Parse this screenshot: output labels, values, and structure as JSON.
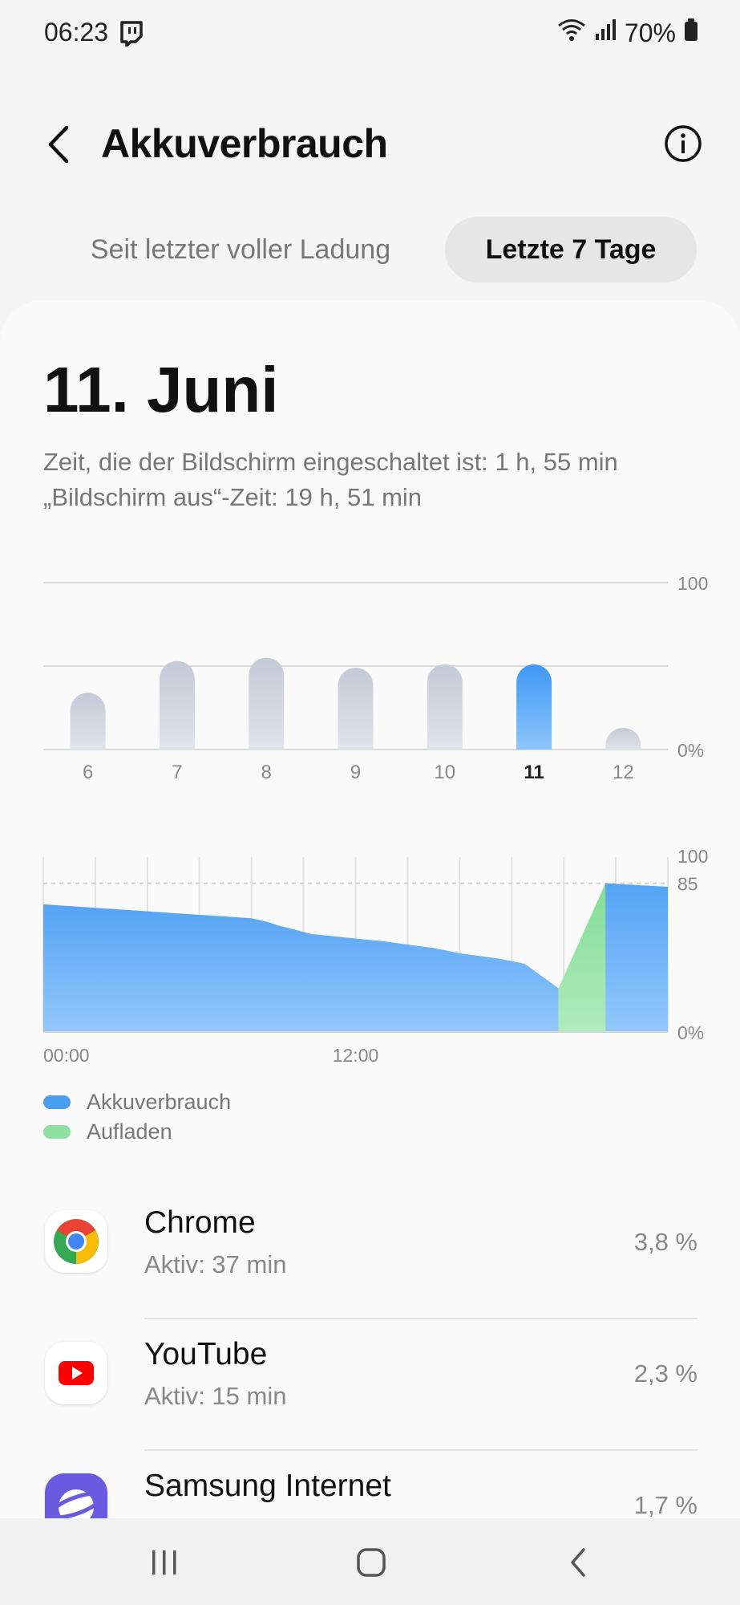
{
  "status_bar": {
    "time": "06:23",
    "battery_percent": "70%"
  },
  "header": {
    "title": "Akkuverbrauch"
  },
  "tabs": [
    {
      "label": "Seit letzter voller Ladung",
      "selected": false
    },
    {
      "label": "Letzte 7 Tage",
      "selected": true
    }
  ],
  "date_title": "11. Juni",
  "screen_on_time": "Zeit, die der Bildschirm eingeschaltet ist: 1 h, 55 min",
  "screen_off_time": "„Bildschirm aus“-Zeit: 19 h, 51 min",
  "chart_data": [
    {
      "type": "bar",
      "categories": [
        "6",
        "7",
        "8",
        "9",
        "10",
        "11",
        "12"
      ],
      "values": [
        34,
        53,
        55,
        49,
        51,
        51,
        13
      ],
      "selected_category": "11",
      "y_tick_labels": [
        "100",
        "0%"
      ],
      "ylim": [
        0,
        100
      ],
      "colors": {
        "default": "#cdd3de",
        "selected": "#4fa3f7"
      }
    },
    {
      "type": "area",
      "x_tick_labels": [
        "00:00",
        "12:00"
      ],
      "y_tick_labels": [
        "100",
        "85",
        "0%"
      ],
      "ylim": [
        0,
        100
      ],
      "xlim": [
        0,
        24
      ],
      "reference_line": 85,
      "series": [
        {
          "name": "Akkuverbrauch",
          "color": "#5ea8f5",
          "x": [
            0,
            2,
            4,
            6,
            8,
            8.6,
            9,
            9.8,
            10.3,
            11,
            12.3,
            13,
            14,
            15,
            16,
            17.5,
            18.5,
            19.8
          ],
          "values": [
            73,
            71,
            69,
            67,
            65,
            63,
            61,
            58,
            56,
            55,
            53,
            52,
            50,
            48,
            45,
            42,
            39,
            25
          ]
        },
        {
          "name": "Aufladen",
          "color": "#8fe0a0",
          "x": [
            19.8,
            21.6
          ],
          "values": [
            25,
            85
          ]
        },
        {
          "name": "Akkuverbrauch",
          "color": "#5ea8f5",
          "x": [
            21.6,
            24
          ],
          "values": [
            85,
            83
          ]
        }
      ]
    }
  ],
  "legend": [
    {
      "label": "Akkuverbrauch",
      "color": "#4b9df0"
    },
    {
      "label": "Aufladen",
      "color": "#8fe0a0"
    }
  ],
  "apps": [
    {
      "name": "Chrome",
      "active": "Aktiv: 37 min",
      "percent": "3,8 %",
      "icon": "chrome-icon"
    },
    {
      "name": "YouTube",
      "active": "Aktiv: 15 min",
      "percent": "2,3 %",
      "icon": "youtube-icon"
    },
    {
      "name": "Samsung Internet",
      "active": "",
      "percent": "1,7 %",
      "icon": "samsung-internet-icon"
    }
  ]
}
